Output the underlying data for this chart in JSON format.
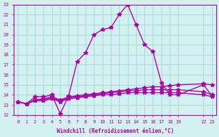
{
  "xlabel": "Windchill (Refroidissement éolien,°C)",
  "bg_color": "#d4f0f0",
  "grid_color": "#aadddd",
  "line_color": "#aa00aa",
  "xlim": [
    -0.5,
    23.5
  ],
  "ylim": [
    12,
    23
  ],
  "xtick_positions": [
    0,
    1,
    2,
    3,
    4,
    5,
    6,
    7,
    8,
    9,
    10,
    11,
    12,
    13,
    14,
    15,
    16,
    17,
    18,
    19,
    22,
    23
  ],
  "xtick_labels": [
    "0",
    "1",
    "2",
    "3",
    "4",
    "5",
    "6",
    "7",
    "8",
    "9",
    "10",
    "11",
    "12",
    "13",
    "14",
    "15",
    "16",
    "17",
    "18",
    "19",
    "22",
    "23"
  ],
  "ytick_positions": [
    12,
    13,
    14,
    15,
    16,
    17,
    18,
    19,
    20,
    21,
    22,
    23
  ],
  "ytick_labels": [
    "12",
    "13",
    "14",
    "15",
    "16",
    "17",
    "18",
    "19",
    "20",
    "21",
    "22",
    "23"
  ],
  "lines": [
    {
      "x": [
        0,
        1,
        2,
        3,
        4,
        5,
        6,
        7,
        8,
        9,
        10,
        11,
        12,
        13,
        14,
        15,
        16,
        17,
        18,
        19,
        22,
        23
      ],
      "y": [
        13.3,
        13.1,
        13.8,
        13.8,
        14.0,
        12.1,
        13.9,
        17.3,
        18.2,
        20.0,
        20.5,
        20.7,
        22.0,
        23.0,
        21.0,
        19.0,
        18.3,
        15.2,
        14.0,
        14.0,
        15.0,
        13.9
      ]
    },
    {
      "x": [
        0,
        1,
        2,
        3,
        4,
        5,
        6,
        7,
        8,
        9,
        10,
        11,
        12,
        13,
        14,
        15,
        16,
        17,
        18,
        19,
        22,
        23
      ],
      "y": [
        13.3,
        13.1,
        13.5,
        13.6,
        13.8,
        13.5,
        13.8,
        13.9,
        14.0,
        14.1,
        14.2,
        14.3,
        14.4,
        14.5,
        14.6,
        14.7,
        14.8,
        14.8,
        14.9,
        15.0,
        15.1,
        15.0
      ]
    },
    {
      "x": [
        0,
        1,
        2,
        3,
        4,
        5,
        6,
        7,
        8,
        9,
        10,
        11,
        12,
        13,
        14,
        15,
        16,
        17,
        18,
        19,
        22,
        23
      ],
      "y": [
        13.3,
        13.1,
        13.5,
        13.5,
        13.7,
        13.4,
        13.7,
        13.8,
        13.9,
        14.0,
        14.1,
        14.2,
        14.3,
        14.4,
        14.4,
        14.5,
        14.5,
        14.5,
        14.5,
        14.5,
        14.3,
        14.0
      ]
    },
    {
      "x": [
        0,
        1,
        2,
        3,
        4,
        5,
        6,
        7,
        8,
        9,
        10,
        11,
        12,
        13,
        14,
        15,
        16,
        17,
        18,
        19,
        22,
        23
      ],
      "y": [
        13.3,
        13.1,
        13.4,
        13.4,
        13.6,
        13.3,
        13.6,
        13.7,
        13.8,
        13.9,
        14.0,
        14.0,
        14.1,
        14.2,
        14.2,
        14.2,
        14.2,
        14.2,
        14.2,
        14.2,
        14.0,
        13.8
      ]
    }
  ]
}
